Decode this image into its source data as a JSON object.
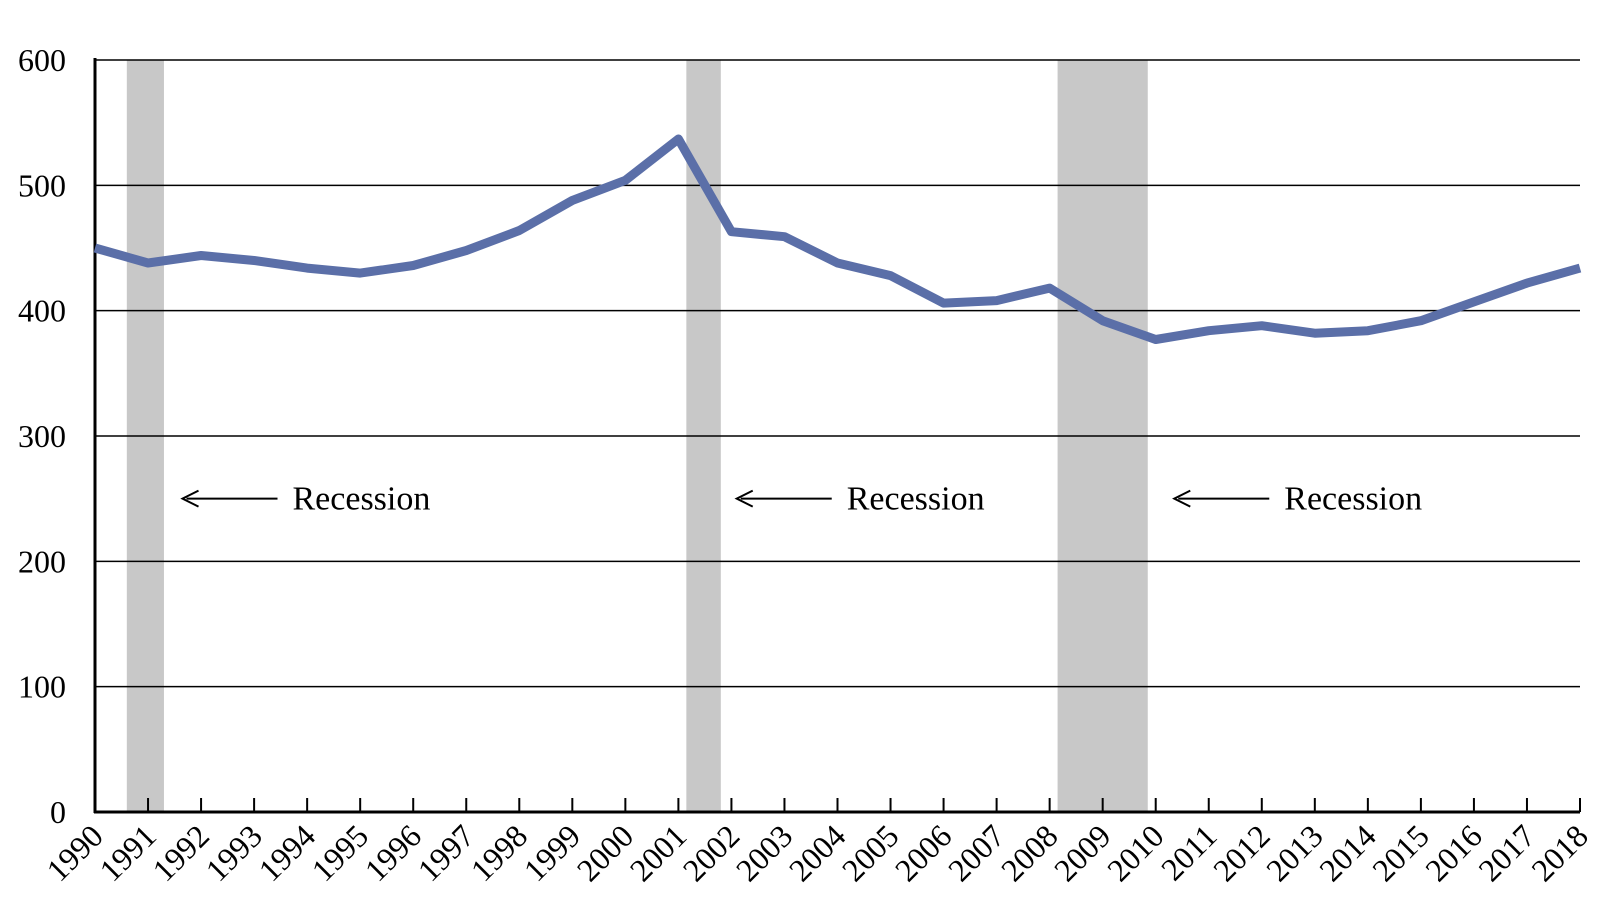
{
  "chart_data": {
    "type": "line",
    "title": "",
    "xlabel": "",
    "ylabel": "",
    "ylim": [
      0,
      600
    ],
    "yticks": [
      0,
      100,
      200,
      300,
      400,
      500,
      600
    ],
    "xlim": [
      1990,
      2018
    ],
    "grid": true,
    "x": [
      1990,
      1991,
      1992,
      1993,
      1994,
      1995,
      1996,
      1997,
      1998,
      1999,
      2000,
      2001,
      2002,
      2003,
      2004,
      2005,
      2006,
      2007,
      2008,
      2009,
      2010,
      2011,
      2012,
      2013,
      2014,
      2015,
      2016,
      2017,
      2018
    ],
    "x_tick_labels": [
      "1990",
      "1991",
      "1992",
      "1993",
      "1994",
      "1995",
      "1996",
      "1997",
      "1998",
      "1999",
      "2000",
      "2001",
      "2002",
      "2003",
      "2004",
      "2005",
      "2006",
      "2007",
      "2008",
      "2009",
      "2010",
      "2011",
      "2012",
      "2013",
      "2014",
      "2015",
      "2016",
      "2017",
      "2018"
    ],
    "series": [
      {
        "color": "#5b6fa8",
        "values": [
          450,
          438,
          444,
          440,
          434,
          430,
          436,
          448,
          464,
          488,
          504,
          537,
          463,
          459,
          438,
          428,
          406,
          408,
          418,
          392,
          377,
          384,
          388,
          382,
          384,
          392,
          407,
          422,
          434
        ]
      }
    ],
    "recession_bands": [
      {
        "start": 1990.6,
        "end": 1991.3
      },
      {
        "start": 2001.15,
        "end": 2001.8
      },
      {
        "start": 2008.15,
        "end": 2009.85
      }
    ],
    "annotations": [
      {
        "text": "Recession",
        "arrow_tip_x": 1991.65,
        "text_x": 1993.75,
        "y": 250
      },
      {
        "text": "Recession",
        "arrow_tip_x": 2002.1,
        "text_x": 2004.2,
        "y": 250
      },
      {
        "text": "Recession",
        "arrow_tip_x": 2010.35,
        "text_x": 2012.45,
        "y": 250
      }
    ],
    "colors": {
      "line": "#5b6fa8",
      "recession": "#c8c8c8",
      "grid": "#000000",
      "axis": "#000000"
    }
  }
}
